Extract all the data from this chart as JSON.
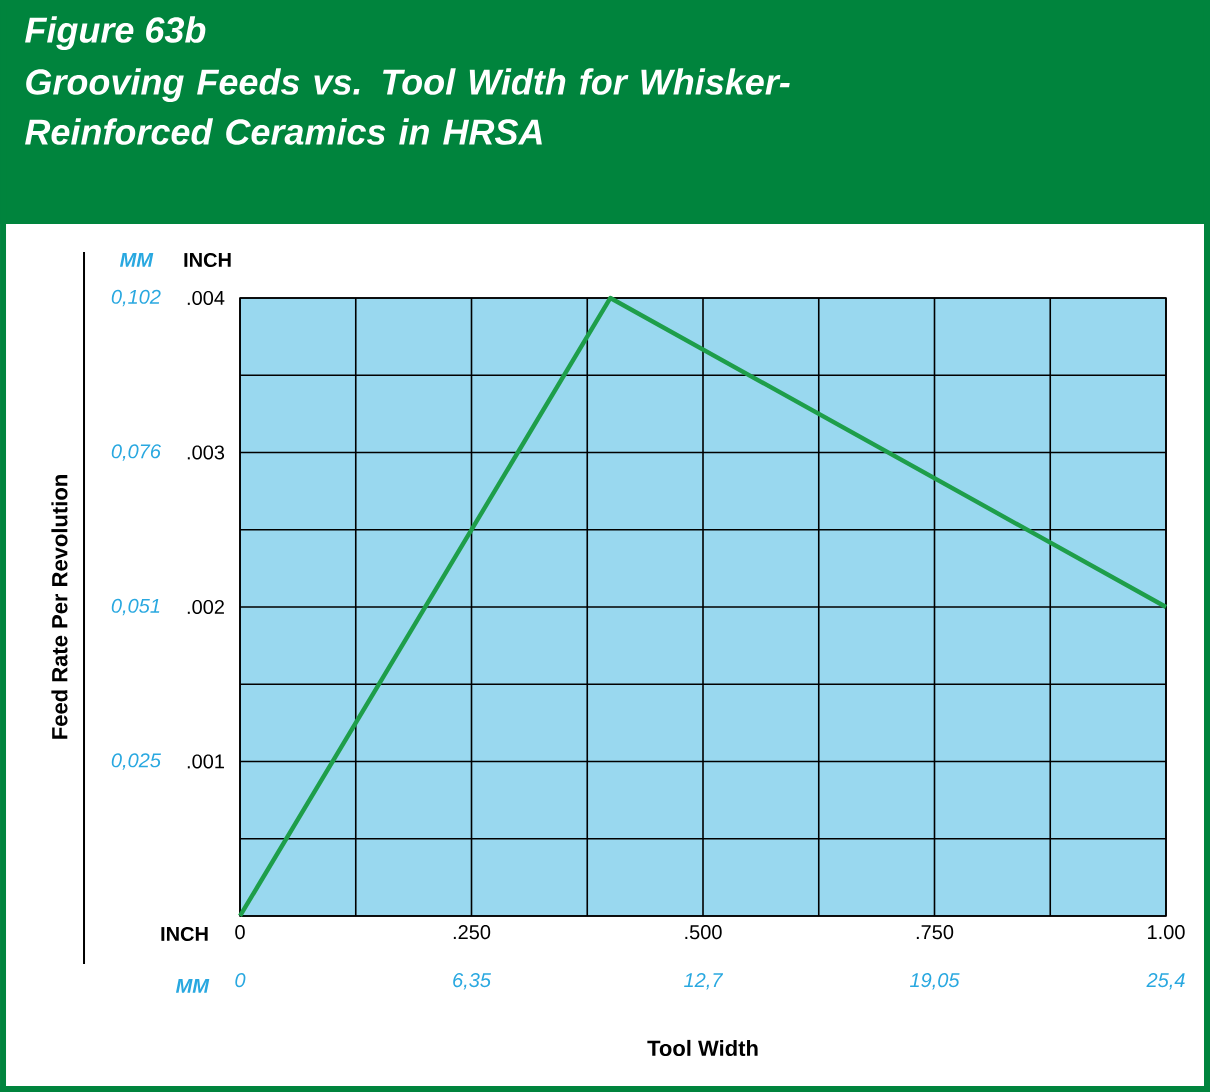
{
  "chart_data": {
    "type": "line",
    "title": "Figure 63b",
    "subtitle": "Grooving Feeds vs. Tool Width for Whisker-Reinforced Ceramics in HRSA",
    "xlabel": "Tool Width",
    "ylabel": "Feed Rate Per Revolution",
    "x2label": "MM",
    "annotations": [
      "MM",
      "INCH",
      "INCH"
    ],
    "x": [
      0,
      0.4,
      1.0
    ],
    "series": [
      {
        "color": "#1e9e4a",
        "axis": "y2",
        "values": [
          0,
          0.004,
          0.002
        ]
      }
    ],
    "xlim": [
      0,
      1.0
    ],
    "xticks": [
      0,
      {
        "value": 0.25,
        "label": ".250"
      },
      {
        "value": 0.5,
        "label": ".500"
      },
      {
        "value": 0.75,
        "label": ".750"
      },
      {
        "value": 1.0,
        "label": "1.00"
      }
    ],
    "y2lim": [
      0,
      0.004
    ],
    "y2ticks": [
      {
        "value": 0,
        "label": null
      },
      {
        "value": 0.001,
        "label": ".001"
      },
      {
        "value": 0.002,
        "label": ".002"
      },
      {
        "value": 0.003,
        "label": ".003"
      },
      {
        "value": 0.004,
        "label": ".004"
      }
    ],
    "x2lim": [
      0,
      25.4
    ],
    "x2ticks": [
      0,
      {
        "value": 6.35,
        "label": "6,35"
      },
      {
        "value": 12.7,
        "label": "12,7"
      },
      {
        "value": 19.05,
        "label": "19,05"
      },
      {
        "value": 25.4,
        "label": "25,4"
      }
    ],
    "ylim": [
      0,
      0.1016
    ],
    "yticks": [
      {
        "value": 0.0254,
        "label": "0,025"
      },
      {
        "value": 0.0508,
        "label": "0,051"
      },
      {
        "value": 0.0762,
        "label": "0,076"
      },
      {
        "value": 0.1016,
        "label": "0,102"
      }
    ],
    "grid": true,
    "marker": "none",
    "line_style": "solid"
  }
}
